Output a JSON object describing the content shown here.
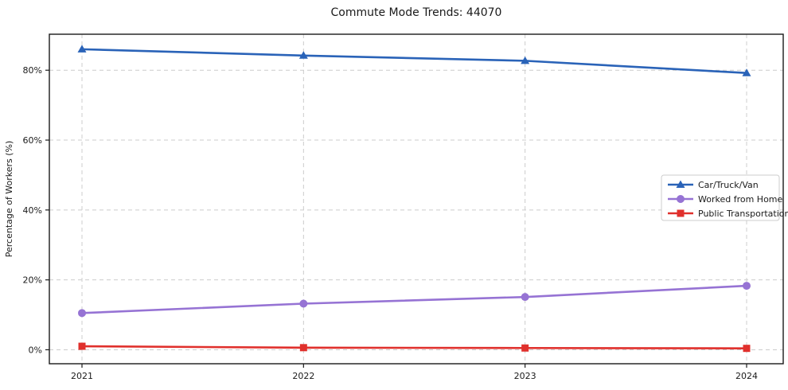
{
  "chart_data": {
    "type": "line",
    "title": "Commute Mode Trends: 44070",
    "xlabel": "",
    "ylabel": "Percentage of Workers (%)",
    "categories": [
      "2021",
      "2022",
      "2023",
      "2024"
    ],
    "series": [
      {
        "name": "Car/Truck/Van",
        "marker": "triangle",
        "color": "#2a63b8",
        "values": [
          86.0,
          84.2,
          82.7,
          79.2
        ]
      },
      {
        "name": "Worked from Home",
        "marker": "circle",
        "color": "#9673d4",
        "values": [
          10.5,
          13.2,
          15.1,
          18.3
        ]
      },
      {
        "name": "Public Transportation",
        "marker": "square",
        "color": "#e0302c",
        "values": [
          1.0,
          0.6,
          0.5,
          0.4
        ]
      }
    ],
    "yticks": [
      0,
      20,
      40,
      60,
      80
    ],
    "ytick_labels": [
      "0%",
      "20%",
      "40%",
      "60%",
      "80%"
    ],
    "ylim": [
      -4,
      90.3
    ],
    "grid": true,
    "grid_color": "#cccccc",
    "axis_color": "#1a1a1a",
    "legend_position": "center right",
    "legend_labels": [
      "Car/Truck/Van",
      "Worked from Home",
      "Public Transportation"
    ]
  }
}
